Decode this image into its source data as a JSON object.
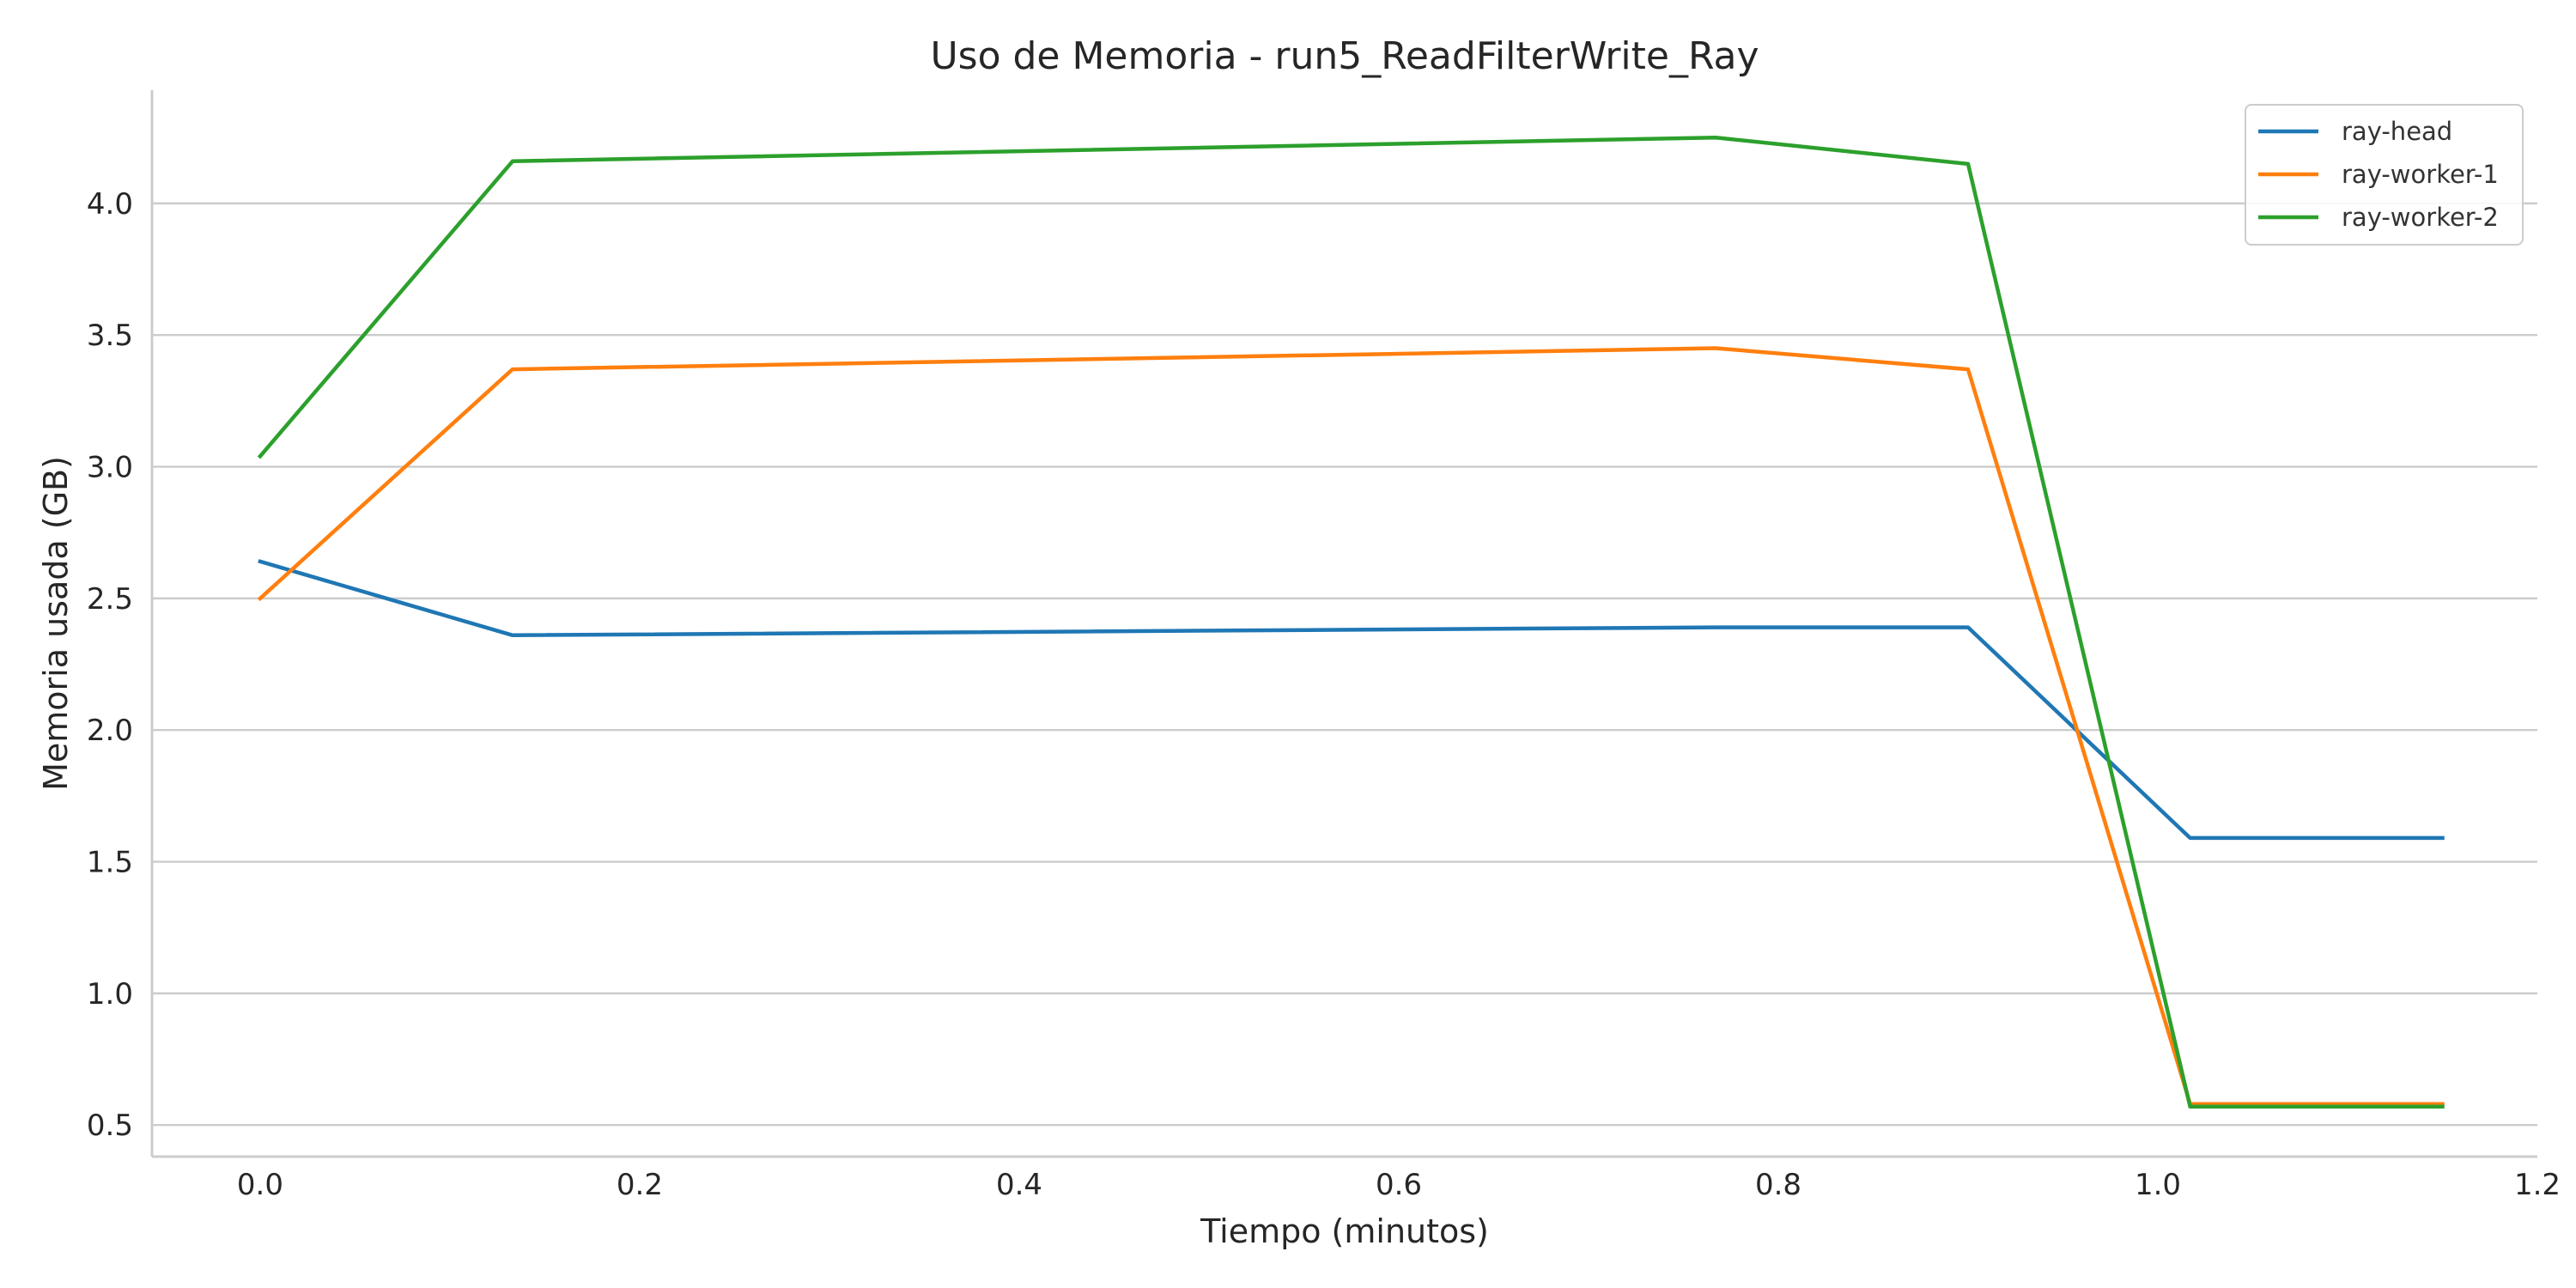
{
  "chart_data": {
    "type": "line",
    "title": "Uso de Memoria - run5_ReadFilterWrite_Ray",
    "xlabel": "Tiempo (minutos)",
    "ylabel": "Memoria usada (GB)",
    "xlim": [
      -0.057,
      1.2
    ],
    "ylim": [
      0.38,
      4.43
    ],
    "xticks": [
      0.0,
      0.2,
      0.4,
      0.6,
      0.8,
      1.0,
      1.2
    ],
    "xtick_labels": [
      "0.0",
      "0.2",
      "0.4",
      "0.6",
      "0.8",
      "1.0",
      "1.2"
    ],
    "yticks": [
      0.5,
      1.0,
      1.5,
      2.0,
      2.5,
      3.0,
      3.5,
      4.0
    ],
    "ytick_labels": [
      "0.5",
      "1.0",
      "1.5",
      "2.0",
      "2.5",
      "3.0",
      "3.5",
      "4.0"
    ],
    "grid": "horizontal",
    "legend_position": "top-right",
    "x": [
      0.0,
      0.133,
      0.767,
      0.9,
      1.017,
      1.15
    ],
    "series": [
      {
        "name": "ray-head",
        "color": "#1f77b4",
        "values": [
          2.64,
          2.36,
          2.39,
          2.39,
          1.59,
          1.59
        ]
      },
      {
        "name": "ray-worker-1",
        "color": "#ff7f0e",
        "values": [
          2.5,
          3.37,
          3.45,
          3.37,
          0.58,
          0.58
        ]
      },
      {
        "name": "ray-worker-2",
        "color": "#2ca02c",
        "values": [
          3.04,
          4.16,
          4.25,
          4.15,
          0.57,
          0.57
        ]
      }
    ]
  }
}
